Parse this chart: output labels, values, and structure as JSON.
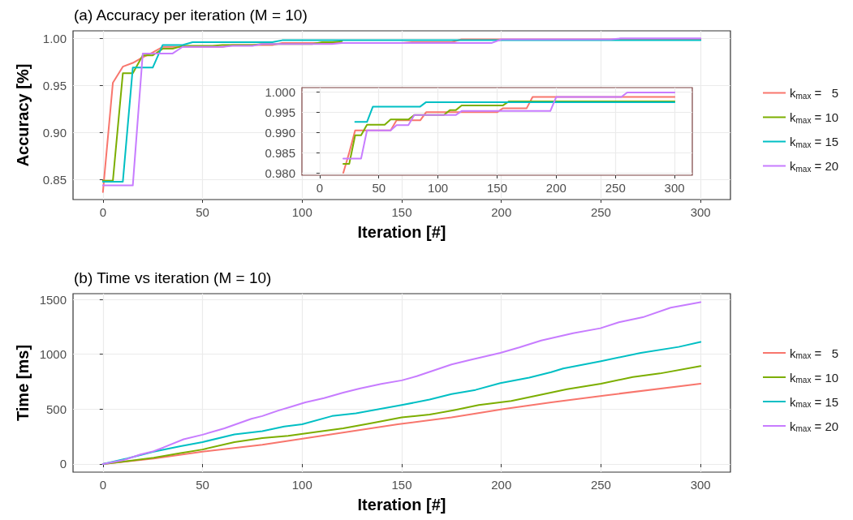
{
  "chart_data": [
    {
      "type": "line",
      "title": "(a) Accuracy per iteration (M = 10)",
      "xlabel": "Iteration [#]",
      "ylabel": "Accuracy [%]",
      "xlim": [
        -15,
        315
      ],
      "xticks": [
        0,
        50,
        100,
        150,
        200,
        250,
        300
      ],
      "ylim": [
        0.829,
        1.008
      ],
      "yticks": [
        0.85,
        {
          "value": 0.9,
          "label": "0.90"
        },
        0.95,
        {
          "value": 1.0,
          "label": "1.00"
        }
      ],
      "grid": true,
      "legend": "right",
      "series": [
        {
          "name": "k$_{max}$ =   5",
          "color": "#f8766d",
          "x": [
            0,
            5,
            10,
            15,
            20,
            25,
            30,
            60,
            65,
            85,
            90,
            150,
            155,
            175,
            180,
            300
          ],
          "values": [
            0.837,
            0.953,
            0.97,
            0.974,
            0.98,
            0.985,
            0.991,
            0.991,
            0.993,
            0.993,
            0.995,
            0.995,
            0.996,
            0.996,
            0.999,
            0.999
          ]
        },
        {
          "name": "k$_{max}$ = 10",
          "color": "#7cae00",
          "x": [
            0,
            5,
            10,
            15,
            20,
            25,
            30,
            35,
            40,
            55,
            60,
            75,
            80,
            105,
            110,
            115,
            120
          ],
          "values": [
            0.849,
            0.849,
            0.963,
            0.963,
            0.982,
            0.982,
            0.989,
            0.989,
            0.992,
            0.992,
            0.993,
            0.993,
            0.994,
            0.994,
            0.996,
            0.996,
            0.997
          ]
        },
        {
          "name": "k$_{max}$ = 15",
          "color": "#00bfc4",
          "x": [
            0,
            10,
            15,
            25,
            30,
            40,
            45,
            85,
            90,
            300
          ],
          "values": [
            0.848,
            0.848,
            0.969,
            0.969,
            0.993,
            0.993,
            0.996,
            0.996,
            0.998,
            0.998
          ]
        },
        {
          "name": "k$_{max}$ = 20",
          "color": "#c77cff",
          "x": [
            0,
            15,
            20,
            35,
            40,
            60,
            65,
            75,
            80,
            115,
            120,
            195,
            200,
            255,
            260,
            300
          ],
          "values": [
            0.844,
            0.844,
            0.984,
            0.984,
            0.991,
            0.991,
            0.992,
            0.992,
            0.994,
            0.994,
            0.995,
            0.995,
            0.999,
            0.999,
            1.0,
            1.0
          ]
        }
      ]
    },
    {
      "type": "line",
      "xlim": [
        -15,
        315
      ],
      "xticks": [
        0,
        50,
        100,
        150,
        200,
        250,
        300
      ],
      "ylim": [
        0.9794,
        1.0011
      ],
      "yticks": [
        {
          "value": 0.98,
          "label": "0.980"
        },
        0.985,
        {
          "value": 0.99,
          "label": "0.990"
        },
        0.995,
        {
          "value": 1.0,
          "label": "1.000"
        }
      ],
      "grid": true,
      "series": [
        {
          "color": "#f8766d",
          "x": [
            20,
            25,
            30,
            60,
            65,
            85,
            90,
            150,
            155,
            175,
            180,
            300
          ],
          "values": [
            0.98,
            0.985,
            0.9905,
            0.9905,
            0.993,
            0.993,
            0.995,
            0.995,
            0.996,
            0.996,
            0.9988,
            0.9988
          ]
        },
        {
          "color": "#7cae00",
          "x": [
            20,
            25,
            30,
            35,
            40,
            55,
            60,
            75,
            80,
            105,
            110,
            115,
            120,
            155,
            160,
            300
          ],
          "values": [
            0.9822,
            0.9822,
            0.9893,
            0.9893,
            0.9919,
            0.9919,
            0.9932,
            0.9932,
            0.9943,
            0.9943,
            0.9955,
            0.9955,
            0.9967,
            0.9967,
            0.9977,
            0.9977
          ]
        },
        {
          "color": "#00bfc4",
          "x": [
            30,
            40,
            45,
            85,
            90,
            300
          ],
          "values": [
            0.9926,
            0.9926,
            0.9964,
            0.9964,
            0.9975,
            0.9975
          ]
        },
        {
          "color": "#c77cff",
          "x": [
            20,
            35,
            40,
            60,
            65,
            75,
            80,
            115,
            120,
            195,
            200,
            255,
            260,
            300
          ],
          "values": [
            0.9835,
            0.9835,
            0.9905,
            0.9905,
            0.9918,
            0.9918,
            0.9943,
            0.9943,
            0.9953,
            0.9953,
            0.9988,
            0.9988,
            0.9999,
            0.9999
          ]
        }
      ]
    },
    {
      "type": "line",
      "title": "(b) Time vs iteration (M = 10)",
      "xlabel": "Iteration [#]",
      "ylabel": "Time [ms]",
      "xlim": [
        -15,
        315
      ],
      "xticks": [
        0,
        50,
        100,
        150,
        200,
        250,
        300
      ],
      "ylim": [
        -74,
        1552
      ],
      "yticks": [
        0,
        500,
        1000,
        1500
      ],
      "grid": true,
      "legend": "right",
      "series": [
        {
          "name": "k$_{max}$ =   5",
          "color": "#f8766d",
          "x": [
            0,
            25.5,
            50,
            80,
            107,
            148,
            175,
            201,
            225,
            252,
            300
          ],
          "values": [
            0,
            50,
            112,
            175,
            250,
            362,
            425,
            500,
            562,
            625,
            732
          ]
        },
        {
          "name": "k$_{max}$ = 10",
          "color": "#7cae00",
          "x": [
            0,
            12,
            25.5,
            39,
            50,
            66,
            80,
            93,
            107,
            120.6,
            134,
            150,
            164,
            176.5,
            188.7,
            205,
            220,
            233,
            250,
            266,
            279.6,
            300
          ],
          "values": [
            0,
            25,
            57,
            100,
            132,
            200,
            237,
            257,
            292,
            325,
            370,
            425,
            450,
            492,
            537,
            575,
            632,
            682,
            732,
            792,
            825,
            892
          ]
        },
        {
          "name": "k$_{max}$ = 15",
          "color": "#00bfc4",
          "x": [
            0,
            12,
            25.5,
            39,
            50,
            66,
            80,
            91,
            100,
            115,
            127,
            150,
            164,
            175,
            187,
            199.5,
            214,
            225,
            231,
            250,
            270,
            289,
            300
          ],
          "values": [
            0,
            50,
            112,
            162,
            200,
            270,
            300,
            342,
            362,
            437,
            462,
            537,
            587,
            637,
            675,
            737,
            787,
            837,
            870,
            937,
            1012,
            1067,
            1112
          ]
        },
        {
          "name": "k$_{max}$ = 20",
          "color": "#c77cff",
          "x": [
            0,
            10.6,
            18.8,
            25.5,
            30.3,
            40.5,
            50,
            61,
            74.5,
            80,
            88,
            95,
            101.6,
            111,
            120.6,
            128.8,
            139.7,
            150,
            157.5,
            175,
            184.6,
            199.5,
            209,
            220,
            236,
            249.7,
            259,
            271,
            285,
            300
          ],
          "values": [
            0,
            37,
            87,
            117,
            150,
            225,
            267,
            325,
            412,
            437,
            487,
            525,
            562,
            600,
            650,
            687,
            730,
            762,
            800,
            907,
            950,
            1012,
            1062,
            1125,
            1192,
            1237,
            1292,
            1337,
            1425,
            1475
          ]
        }
      ]
    }
  ]
}
